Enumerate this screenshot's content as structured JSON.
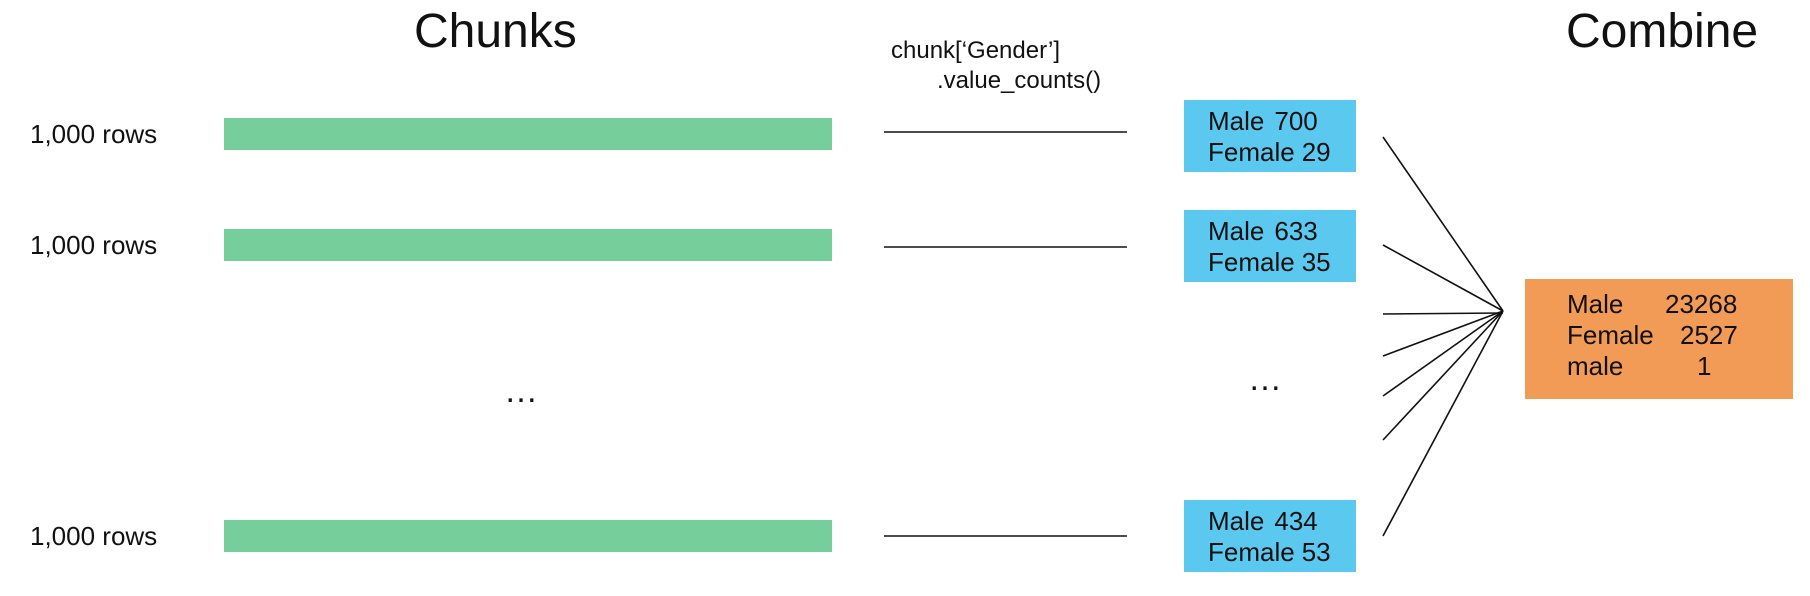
{
  "headings": {
    "chunks": "Chunks",
    "combine": "Combine"
  },
  "operation": {
    "line1": "chunk[‘Gender’]",
    "line2": ".value_counts()"
  },
  "chunks": [
    {
      "label": "1,000 rows",
      "male_label": "Male",
      "male_count": "700",
      "female_label": "Female",
      "female_count": "29"
    },
    {
      "label": "1,000 rows",
      "male_label": "Male",
      "male_count": "633",
      "female_label": "Female",
      "female_count": "35"
    },
    {
      "label": "1,000 rows",
      "male_label": "Male",
      "male_count": "434",
      "female_label": "Female",
      "female_count": "53"
    }
  ],
  "ellipsis": "…",
  "combined": [
    {
      "label": "Male",
      "count": "23268"
    },
    {
      "label": "Female",
      "count": "2527"
    },
    {
      "label": "male",
      "count": "1"
    }
  ],
  "colors": {
    "chunk_bar": "#76ce9b",
    "count_box": "#5bc8ef",
    "combine_box": "#f29b56"
  }
}
